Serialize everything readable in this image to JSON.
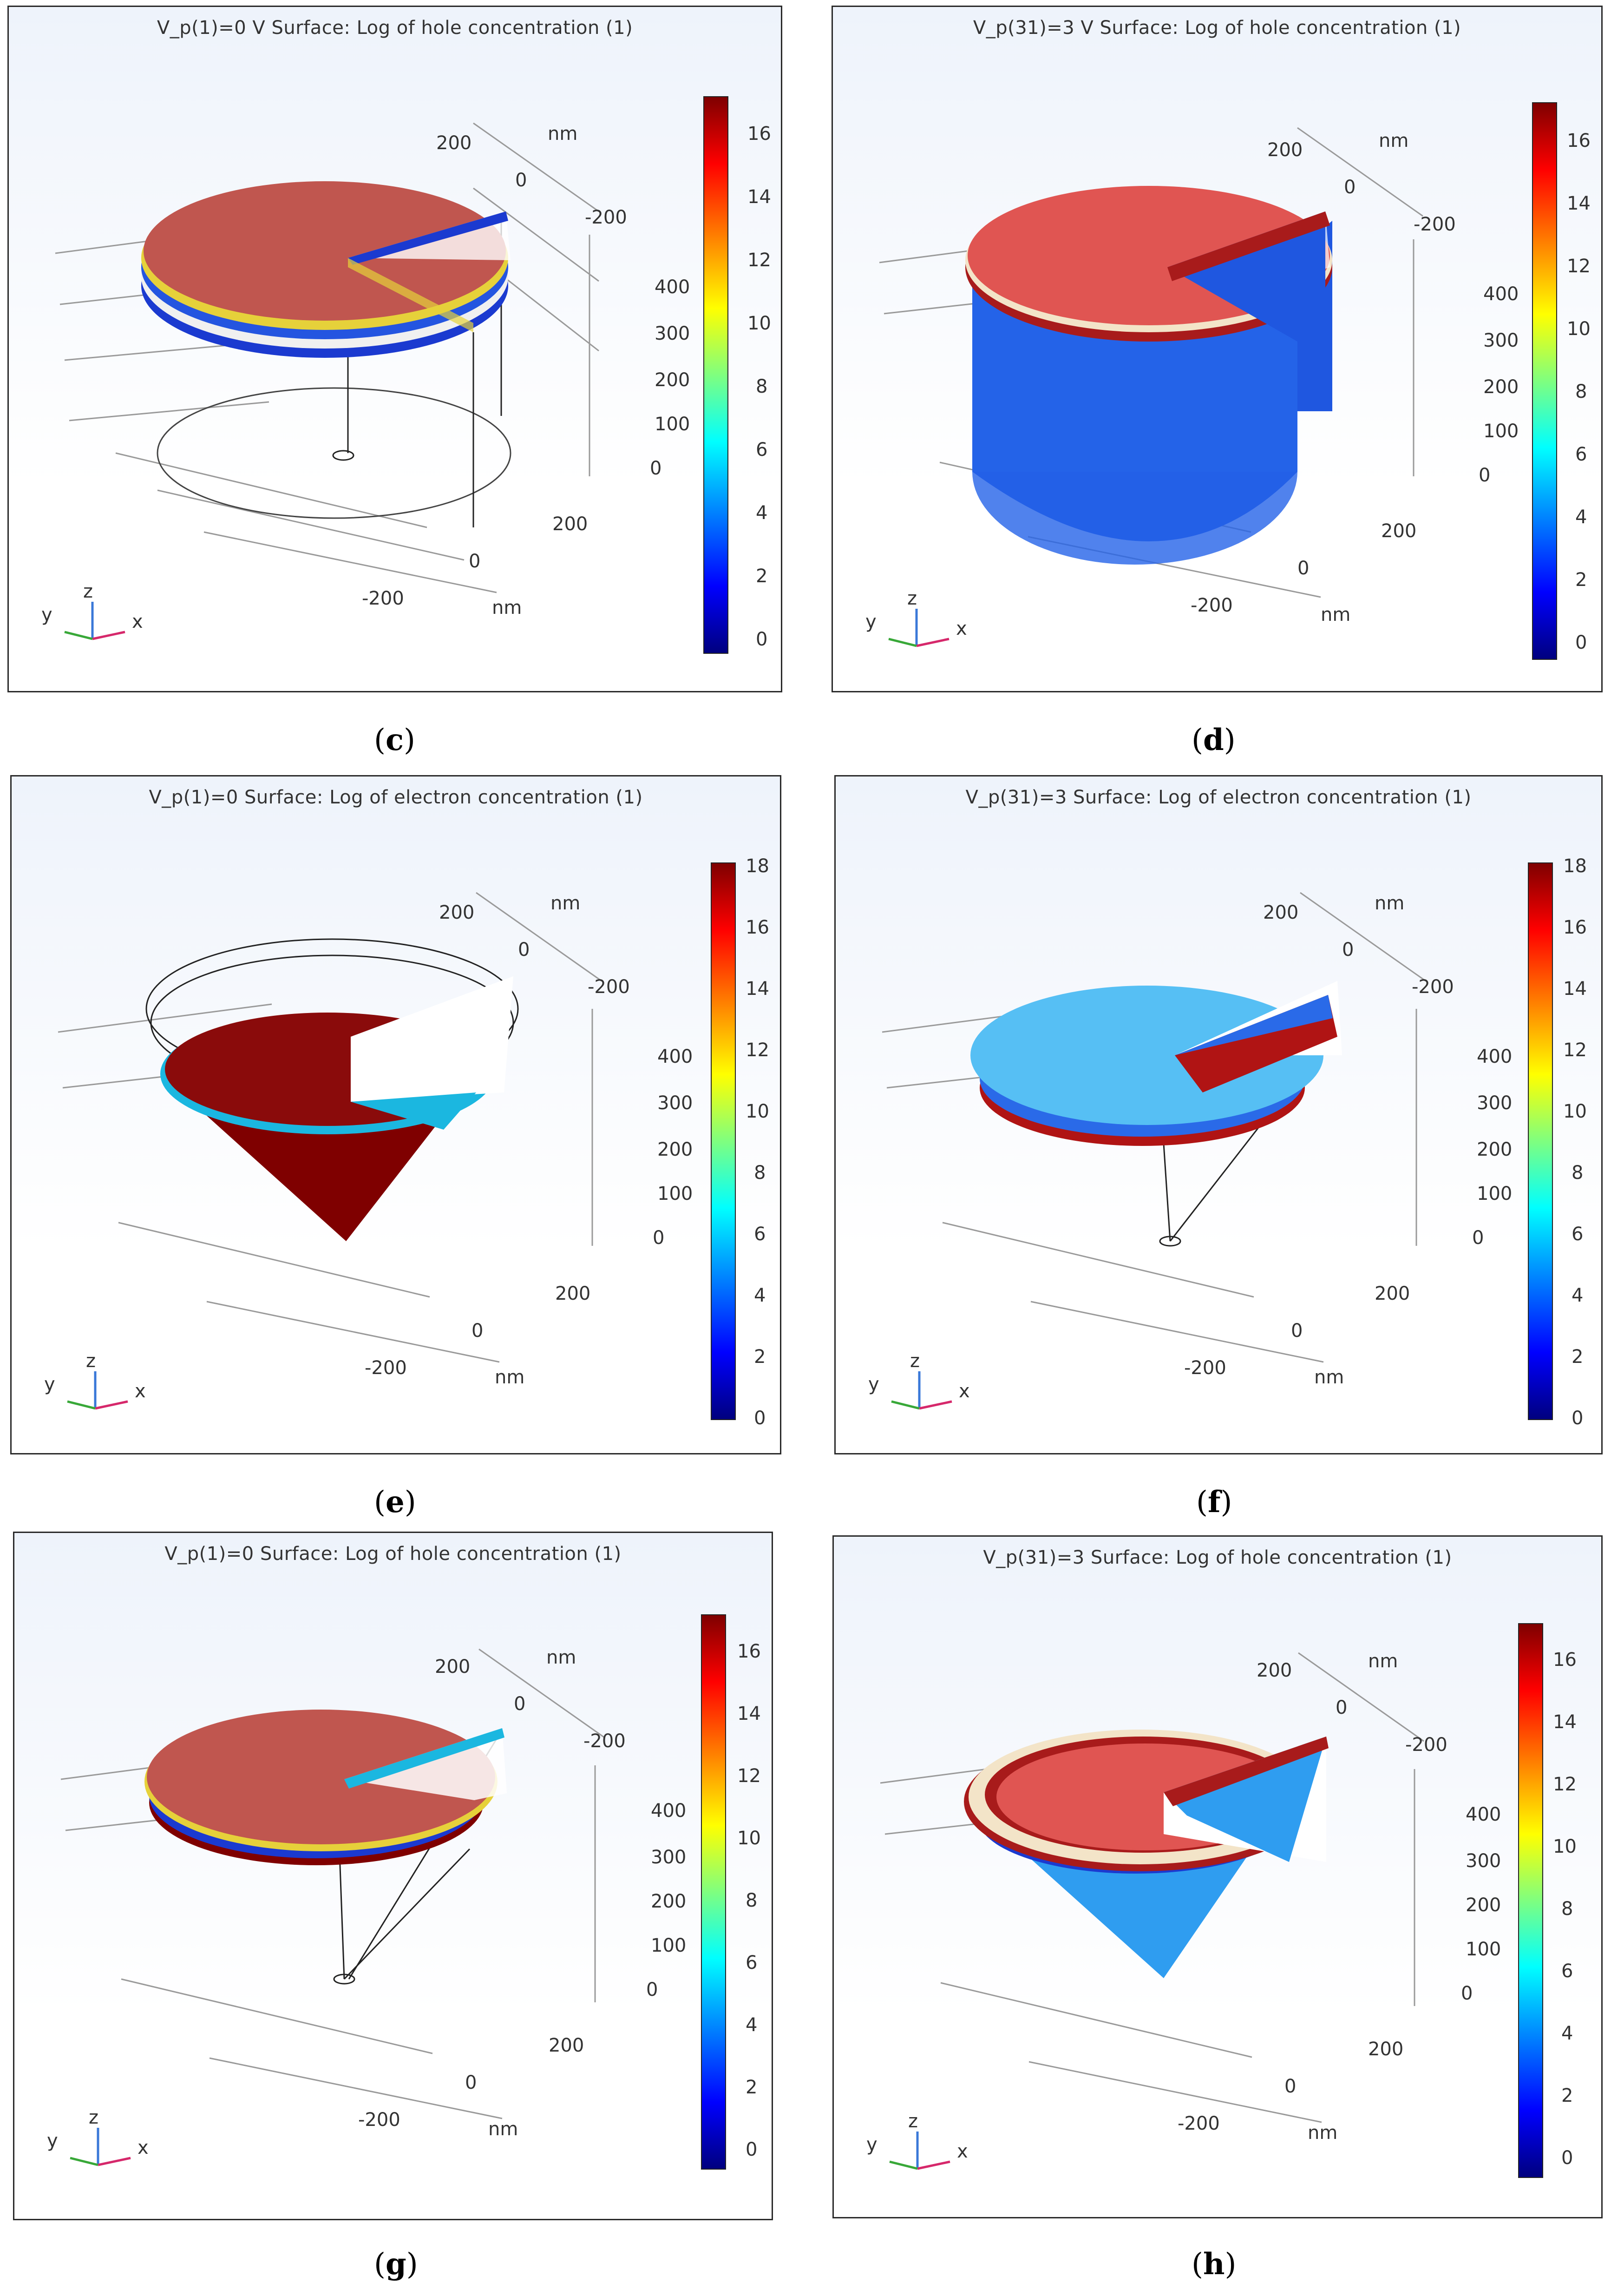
{
  "panels": [
    {
      "id": "c",
      "title": "V_p(1)=0 V   Surface: Log of hole concentration (1)",
      "caption_letter": "c",
      "cbar_ticks": [
        "16",
        "14",
        "12",
        "10",
        "8",
        "6",
        "4",
        "2",
        "0"
      ],
      "axis_ticks": {
        "top_200": "200",
        "top_0": "0",
        "top_m200": "-200",
        "top_nm": "nm",
        "z_400": "400",
        "z_300": "300",
        "z_200": "200",
        "z_100": "100",
        "z_0": "0",
        "bot_200": "200",
        "bot_0": "0",
        "bot_m200": "-200",
        "bot_nm": "nm"
      },
      "triad": {
        "x": "x",
        "y": "y",
        "z": "z"
      },
      "colors": {
        "top": "#c0564f",
        "body": "none",
        "edge": "#e6d13a"
      }
    },
    {
      "id": "d",
      "title": "V_p(31)=3 V   Surface: Log of hole concentration (1)",
      "caption_letter": "d",
      "cbar_ticks": [
        "16",
        "14",
        "12",
        "10",
        "8",
        "6",
        "4",
        "2",
        "0"
      ],
      "axis_ticks": {
        "top_200": "200",
        "top_0": "0",
        "top_m200": "-200",
        "top_nm": "nm",
        "z_400": "400",
        "z_300": "300",
        "z_200": "200",
        "z_100": "100",
        "z_0": "0",
        "bot_200": "200",
        "bot_0": "0",
        "bot_m200": "-200",
        "bot_nm": "nm"
      },
      "triad": {
        "x": "x",
        "y": "y",
        "z": "z"
      },
      "colors": {
        "top": "#e05552",
        "body": "#1f57e0",
        "edge": "#a81b1b"
      }
    },
    {
      "id": "e",
      "title": "V_p(1)=0   Surface: Log of electron concentration (1)",
      "caption_letter": "e",
      "cbar_ticks": [
        "18",
        "16",
        "14",
        "12",
        "10",
        "8",
        "6",
        "4",
        "2",
        "0"
      ],
      "axis_ticks": {
        "top_200": "200",
        "top_0": "0",
        "top_m200": "-200",
        "top_nm": "nm",
        "z_400": "400",
        "z_300": "300",
        "z_200": "200",
        "z_100": "100",
        "z_0": "0",
        "bot_200": "200",
        "bot_0": "0",
        "bot_m200": "-200",
        "bot_nm": "nm"
      },
      "triad": {
        "x": "x",
        "y": "y",
        "z": "z"
      },
      "colors": {
        "top": "#8a0b0b",
        "body": "#7f0000",
        "edge": "#1bb7e0"
      }
    },
    {
      "id": "f",
      "title": "V_p(31)=3   Surface: Log of electron concentration (1)",
      "caption_letter": "f",
      "cbar_ticks": [
        "18",
        "16",
        "14",
        "12",
        "10",
        "8",
        "6",
        "4",
        "2",
        "0"
      ],
      "axis_ticks": {
        "top_200": "200",
        "top_0": "0",
        "top_m200": "-200",
        "top_nm": "nm",
        "z_400": "400",
        "z_300": "300",
        "z_200": "200",
        "z_100": "100",
        "z_0": "0",
        "bot_200": "200",
        "bot_0": "0",
        "bot_m200": "-200",
        "bot_nm": "nm"
      },
      "triad": {
        "x": "x",
        "y": "y",
        "z": "z"
      },
      "colors": {
        "top": "#56bff4",
        "body": "none",
        "edge": "#b01414"
      }
    },
    {
      "id": "g",
      "title": "V_p(1)=0   Surface: Log of hole concentration (1)",
      "caption_letter": "g",
      "cbar_ticks": [
        "16",
        "14",
        "12",
        "10",
        "8",
        "6",
        "4",
        "2",
        "0"
      ],
      "axis_ticks": {
        "top_200": "200",
        "top_0": "0",
        "top_m200": "-200",
        "top_nm": "nm",
        "z_400": "400",
        "z_300": "300",
        "z_200": "200",
        "z_100": "100",
        "z_0": "0",
        "bot_200": "200",
        "bot_0": "0",
        "bot_m200": "-200",
        "bot_nm": "nm"
      },
      "triad": {
        "x": "x",
        "y": "y",
        "z": "z"
      },
      "colors": {
        "top": "#c0564f",
        "body": "none",
        "edge": "#e6d13a"
      }
    },
    {
      "id": "h",
      "title": "V_p(31)=3   Surface: Log of hole concentration (1)",
      "caption_letter": "h",
      "cbar_ticks": [
        "16",
        "14",
        "12",
        "10",
        "8",
        "6",
        "4",
        "2",
        "0"
      ],
      "axis_ticks": {
        "top_200": "200",
        "top_0": "0",
        "top_m200": "-200",
        "top_nm": "nm",
        "z_400": "400",
        "z_300": "300",
        "z_200": "200",
        "z_100": "100",
        "z_0": "0",
        "bot_200": "200",
        "bot_0": "0",
        "bot_m200": "-200",
        "bot_nm": "nm"
      },
      "triad": {
        "x": "x",
        "y": "y",
        "z": "z"
      },
      "colors": {
        "top": "#e05552",
        "body": "#2f9df0",
        "edge": "#a81b1b"
      }
    }
  ],
  "caption_parens": {
    "open": "(",
    "close": ")"
  }
}
